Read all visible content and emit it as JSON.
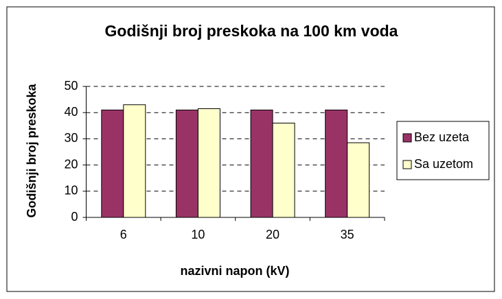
{
  "chart_data": {
    "type": "bar",
    "title": "Godišnji broj preskoka na 100 km voda",
    "x_label": "nazivni napon (kV)",
    "y_label": "Godišnji broj preskoka",
    "categories": [
      "6",
      "10",
      "20",
      "35"
    ],
    "series": [
      {
        "name": "Bez uzeta",
        "color": "#993366",
        "values": [
          41,
          41,
          41,
          41
        ]
      },
      {
        "name": "Sa uzetom",
        "color": "#ffffcc",
        "values": [
          43,
          41.5,
          36,
          28.5
        ]
      }
    ],
    "ylim": [
      0,
      50
    ],
    "yticks": [
      0,
      10,
      20,
      30,
      40,
      50
    ],
    "grid": true,
    "legend": "right"
  }
}
